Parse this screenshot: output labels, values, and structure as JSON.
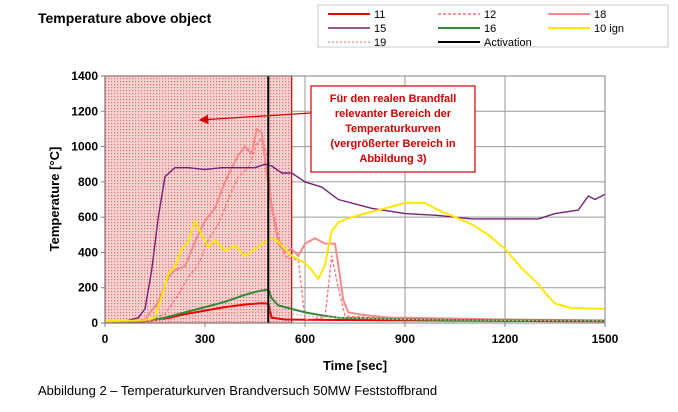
{
  "chart_data": {
    "type": "line",
    "title": "Temperature above object",
    "xlabel": "Time [sec]",
    "ylabel": "Temperature [°C]",
    "xlim": [
      0,
      1500
    ],
    "ylim": [
      0,
      1400
    ],
    "x_ticks": [
      "0",
      "300",
      "600",
      "900",
      "1200",
      "1500"
    ],
    "y_ticks": [
      "0",
      "200",
      "400",
      "600",
      "800",
      "1000",
      "1200",
      "1400"
    ],
    "grid": true,
    "legend_position": "top",
    "annotation": {
      "lines": [
        "Für den realen Brandfall",
        "relevanter Bereich der",
        "Temperaturkurven",
        "(vergrößerter Bereich in",
        "Abbildung 3)"
      ],
      "region_x": [
        0,
        560
      ]
    },
    "series": [
      {
        "name": "11",
        "color": "#ee0000",
        "dash": "",
        "width": 2,
        "points": [
          [
            0,
            5
          ],
          [
            60,
            8
          ],
          [
            120,
            10
          ],
          [
            180,
            25
          ],
          [
            240,
            50
          ],
          [
            300,
            70
          ],
          [
            360,
            90
          ],
          [
            420,
            105
          ],
          [
            470,
            112
          ],
          [
            490,
            110
          ],
          [
            500,
            30
          ],
          [
            540,
            20
          ],
          [
            600,
            18
          ],
          [
            900,
            15
          ],
          [
            1200,
            12
          ],
          [
            1500,
            10
          ]
        ]
      },
      {
        "name": "12",
        "color": "#ff7070",
        "dash": "3,2",
        "width": 1.3,
        "points": [
          [
            0,
            5
          ],
          [
            60,
            8
          ],
          [
            120,
            15
          ],
          [
            180,
            50
          ],
          [
            220,
            160
          ],
          [
            250,
            260
          ],
          [
            280,
            330
          ],
          [
            310,
            470
          ],
          [
            340,
            560
          ],
          [
            370,
            700
          ],
          [
            400,
            830
          ],
          [
            430,
            880
          ],
          [
            455,
            1010
          ],
          [
            470,
            1050
          ],
          [
            485,
            960
          ],
          [
            500,
            680
          ],
          [
            520,
            500
          ],
          [
            540,
            380
          ],
          [
            560,
            360
          ],
          [
            580,
            360
          ],
          [
            600,
            20
          ],
          [
            660,
            30
          ],
          [
            680,
            380
          ],
          [
            700,
            200
          ],
          [
            720,
            40
          ],
          [
            800,
            30
          ],
          [
            900,
            25
          ],
          [
            1200,
            15
          ],
          [
            1500,
            12
          ]
        ]
      },
      {
        "name": "18",
        "color": "#f58a8a",
        "dash": "",
        "width": 2,
        "points": [
          [
            0,
            5
          ],
          [
            60,
            10
          ],
          [
            120,
            20
          ],
          [
            160,
            120
          ],
          [
            190,
            260
          ],
          [
            210,
            300
          ],
          [
            240,
            320
          ],
          [
            270,
            460
          ],
          [
            300,
            580
          ],
          [
            330,
            650
          ],
          [
            360,
            800
          ],
          [
            380,
            880
          ],
          [
            400,
            950
          ],
          [
            420,
            1000
          ],
          [
            440,
            960
          ],
          [
            455,
            1100
          ],
          [
            470,
            1080
          ],
          [
            485,
            850
          ],
          [
            500,
            660
          ],
          [
            520,
            450
          ],
          [
            540,
            400
          ],
          [
            560,
            420
          ],
          [
            580,
            380
          ],
          [
            600,
            450
          ],
          [
            630,
            480
          ],
          [
            660,
            450
          ],
          [
            690,
            450
          ],
          [
            700,
            330
          ],
          [
            715,
            130
          ],
          [
            730,
            60
          ],
          [
            760,
            50
          ],
          [
            800,
            40
          ],
          [
            860,
            30
          ],
          [
            900,
            30
          ],
          [
            1200,
            20
          ],
          [
            1500,
            15
          ]
        ]
      },
      {
        "name": "15",
        "color": "#7a207a",
        "dash": "",
        "width": 1.4,
        "points": [
          [
            0,
            5
          ],
          [
            60,
            10
          ],
          [
            100,
            30
          ],
          [
            120,
            80
          ],
          [
            140,
            300
          ],
          [
            160,
            600
          ],
          [
            180,
            830
          ],
          [
            210,
            880
          ],
          [
            250,
            880
          ],
          [
            300,
            870
          ],
          [
            350,
            880
          ],
          [
            400,
            880
          ],
          [
            450,
            880
          ],
          [
            480,
            900
          ],
          [
            500,
            890
          ],
          [
            530,
            850
          ],
          [
            560,
            850
          ],
          [
            600,
            800
          ],
          [
            650,
            770
          ],
          [
            700,
            700
          ],
          [
            800,
            650
          ],
          [
            900,
            620
          ],
          [
            1000,
            610
          ],
          [
            1100,
            590
          ],
          [
            1200,
            590
          ],
          [
            1300,
            590
          ],
          [
            1350,
            620
          ],
          [
            1420,
            640
          ],
          [
            1450,
            720
          ],
          [
            1470,
            700
          ],
          [
            1500,
            730
          ]
        ]
      },
      {
        "name": "16",
        "color": "#2e8b3a",
        "dash": "",
        "width": 2,
        "points": [
          [
            0,
            5
          ],
          [
            60,
            8
          ],
          [
            120,
            12
          ],
          [
            180,
            30
          ],
          [
            240,
            60
          ],
          [
            300,
            90
          ],
          [
            360,
            120
          ],
          [
            420,
            160
          ],
          [
            460,
            180
          ],
          [
            490,
            190
          ],
          [
            500,
            140
          ],
          [
            520,
            100
          ],
          [
            600,
            60
          ],
          [
            660,
            40
          ],
          [
            700,
            30
          ],
          [
            900,
            20
          ],
          [
            1200,
            15
          ],
          [
            1500,
            12
          ]
        ]
      },
      {
        "name": "10 ign",
        "color": "#ffe800",
        "dash": "",
        "width": 2,
        "points": [
          [
            0,
            10
          ],
          [
            60,
            12
          ],
          [
            120,
            15
          ],
          [
            150,
            30
          ],
          [
            170,
            150
          ],
          [
            190,
            280
          ],
          [
            210,
            320
          ],
          [
            230,
            420
          ],
          [
            250,
            460
          ],
          [
            270,
            580
          ],
          [
            290,
            500
          ],
          [
            310,
            430
          ],
          [
            330,
            470
          ],
          [
            360,
            410
          ],
          [
            390,
            440
          ],
          [
            420,
            380
          ],
          [
            450,
            420
          ],
          [
            480,
            460
          ],
          [
            500,
            480
          ],
          [
            520,
            460
          ],
          [
            560,
            380
          ],
          [
            580,
            360
          ],
          [
            600,
            340
          ],
          [
            620,
            300
          ],
          [
            640,
            250
          ],
          [
            660,
            330
          ],
          [
            680,
            520
          ],
          [
            700,
            570
          ],
          [
            740,
            600
          ],
          [
            780,
            620
          ],
          [
            820,
            640
          ],
          [
            860,
            660
          ],
          [
            900,
            680
          ],
          [
            960,
            680
          ],
          [
            1000,
            640
          ],
          [
            1050,
            600
          ],
          [
            1100,
            560
          ],
          [
            1150,
            500
          ],
          [
            1200,
            420
          ],
          [
            1250,
            310
          ],
          [
            1300,
            220
          ],
          [
            1330,
            150
          ],
          [
            1350,
            110
          ],
          [
            1400,
            85
          ],
          [
            1500,
            80
          ]
        ]
      },
      {
        "name": "19",
        "color": "#f3a0a0",
        "dash": "2,2",
        "width": 1.2,
        "points": [
          [
            0,
            5
          ],
          [
            100,
            10
          ],
          [
            200,
            20
          ],
          [
            300,
            40
          ],
          [
            400,
            60
          ],
          [
            500,
            70
          ],
          [
            600,
            40
          ],
          [
            700,
            30
          ],
          [
            800,
            25
          ],
          [
            900,
            20
          ],
          [
            1200,
            15
          ],
          [
            1500,
            12
          ]
        ]
      },
      {
        "name": "Activation",
        "color": "#000000",
        "dash": "",
        "width": 2,
        "points": [
          [
            490,
            0
          ],
          [
            490,
            1400
          ]
        ]
      }
    ]
  },
  "figure": {
    "caption_prefix": "Abbildung 2",
    "caption_rest": " – Temperaturkurven Brandversuch 50MW Feststoffbrand"
  }
}
